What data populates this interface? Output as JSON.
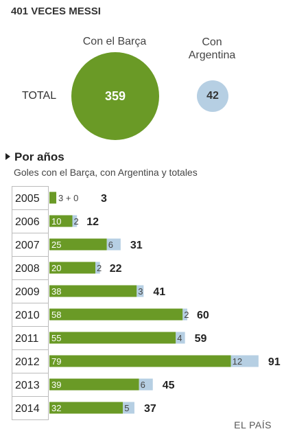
{
  "header": {
    "title": "401 VECES MESSI",
    "label_barca": "Con el Barça",
    "label_argentina_line1": "Con",
    "label_argentina_line2": "Argentina",
    "label_total": "TOTAL",
    "total_barca": "359",
    "total_argentina": "42",
    "section_title": "Por años",
    "subtitle": "Goles con el Barça, con Argentina y totales"
  },
  "credit": "EL PAÍS",
  "colors": {
    "barca": "#6a9a26",
    "argentina": "#b6cfe3"
  },
  "chart_data": {
    "type": "bar",
    "orientation": "horizontal",
    "stacked": true,
    "categories": [
      "2005",
      "2006",
      "2007",
      "2008",
      "2009",
      "2010",
      "2011",
      "2012",
      "2013",
      "2014"
    ],
    "series": [
      {
        "name": "Con el Barça",
        "values": [
          3,
          10,
          25,
          20,
          38,
          58,
          55,
          79,
          39,
          32
        ]
      },
      {
        "name": "Con Argentina",
        "values": [
          0,
          2,
          6,
          2,
          3,
          2,
          4,
          12,
          6,
          5
        ]
      }
    ],
    "totals": [
      3,
      12,
      31,
      22,
      41,
      60,
      59,
      91,
      45,
      37
    ],
    "segment_labels_2005": "3 + 0",
    "title": "",
    "xlabel": "",
    "ylabel": ""
  }
}
